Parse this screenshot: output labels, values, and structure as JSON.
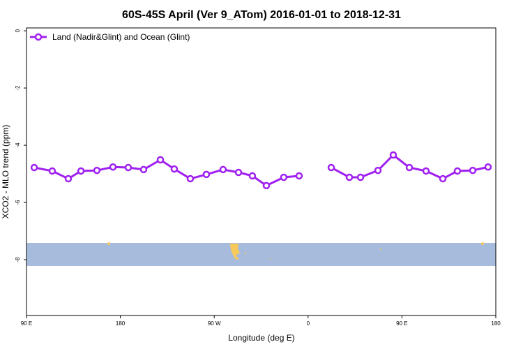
{
  "chart_data": {
    "type": "line",
    "title": "60S-45S April (Ver 9_ATom)   2016-01-01 to 2018-12-31",
    "xlabel": "Longitude (deg E)",
    "ylabel": "XCO2 - MLO trend (ppm)",
    "xlim": [
      90,
      540
    ],
    "xticks": [
      {
        "value": 90,
        "label": "90 E"
      },
      180,
      {
        "value": 270,
        "label": "90 W"
      },
      {
        "value": 360,
        "label": "0"
      },
      {
        "value": 450,
        "label": "90 E"
      },
      {
        "value": 540,
        "label": "180"
      }
    ],
    "ylim": [
      -9.95,
      0.1
    ],
    "yticks": [
      0,
      -2,
      -4,
      -6,
      -8
    ],
    "legend": "top-left",
    "x": [
      97.4,
      114.7,
      130.1,
      142.2,
      157.5,
      172.9,
      187.6,
      202.3,
      218.4,
      231.7,
      247.1,
      262.5,
      278.5,
      293.3,
      306.6,
      320,
      336.7,
      351.4,
      367,
      382.2,
      399.6,
      410.3,
      427,
      441.7,
      457.1,
      473.1,
      489.2,
      503.2,
      517.9,
      532.6
    ],
    "series": [
      {
        "name": "Land (Nadir&Glint) and Ocean (Glint)",
        "color": "#a020f0",
        "values": [
          -4.78,
          -4.9,
          -5.17,
          -4.9,
          -4.88,
          -4.76,
          -4.78,
          -4.85,
          -4.51,
          -4.83,
          -5.17,
          -5.02,
          -4.85,
          -4.95,
          -5.07,
          -5.41,
          -5.12,
          -5.07,
          null,
          -4.78,
          -5.12,
          -5.12,
          -4.88,
          -4.34,
          -4.78,
          -4.9,
          -5.17,
          -4.9,
          -4.88,
          -4.76
        ]
      }
    ]
  }
}
